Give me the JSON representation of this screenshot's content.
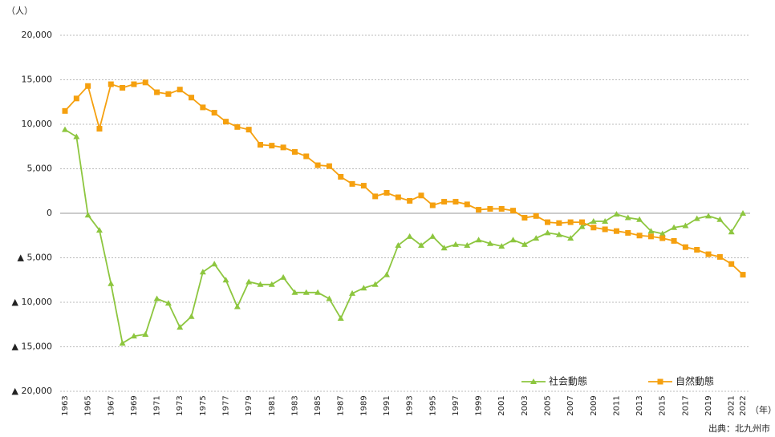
{
  "chart_data": {
    "type": "line",
    "y_unit_label": "（人）",
    "x_unit_label": "（年）",
    "source": "出典：北九州市",
    "categories": [
      "1963",
      null,
      "1965",
      null,
      "1967",
      null,
      "1969",
      null,
      "1971",
      null,
      "1973",
      null,
      "1975",
      null,
      "1977",
      null,
      "1979",
      null,
      "1981",
      null,
      "1983",
      null,
      "1985",
      null,
      "1987",
      null,
      "1989",
      null,
      "1991",
      null,
      "1993",
      null,
      "1995",
      null,
      "1997",
      null,
      "1999",
      null,
      "2001",
      null,
      "2003",
      null,
      "2005",
      null,
      "2007",
      null,
      "2009",
      null,
      "2011",
      null,
      "2013",
      null,
      "2015",
      null,
      "2017",
      null,
      "2019",
      null,
      "2021",
      "2022"
    ],
    "series": [
      {
        "name": "社会動態",
        "color": "#8dc63f",
        "marker": "triangle",
        "values": [
          9400,
          8600,
          -200,
          -1900,
          -7900,
          -14600,
          -13800,
          -13600,
          -9600,
          -10100,
          -12800,
          -11600,
          -6600,
          -5700,
          -7500,
          -10500,
          -7700,
          -8000,
          -8000,
          -7200,
          -8900,
          -8900,
          -8900,
          -9600,
          -11800,
          -9000,
          -8400,
          -8000,
          -6900,
          -3600,
          -2600,
          -3600,
          -2600,
          -3900,
          -3500,
          -3600,
          -3000,
          -3400,
          -3700,
          -3000,
          -3500,
          -2800,
          -2200,
          -2400,
          -2800,
          -1500,
          -900,
          -900,
          -100,
          -500,
          -700,
          -2000,
          -2300,
          -1600,
          -1400,
          -600,
          -300,
          -700,
          -2100,
          0
        ]
      },
      {
        "name": "自然動態",
        "color": "#f5a00f",
        "marker": "square",
        "values": [
          11500,
          12900,
          14300,
          9500,
          14500,
          14100,
          14500,
          14700,
          13600,
          13400,
          13900,
          13000,
          11900,
          11300,
          10300,
          9700,
          9400,
          7700,
          7600,
          7400,
          6900,
          6400,
          5400,
          5300,
          4100,
          3300,
          3100,
          1900,
          2300,
          1800,
          1400,
          2000,
          900,
          1300,
          1300,
          1000,
          400,
          500,
          500,
          300,
          -500,
          -300,
          -1000,
          -1100,
          -1000,
          -1000,
          -1600,
          -1800,
          -2000,
          -2200,
          -2500,
          -2600,
          -2800,
          -3100,
          -3800,
          -4100,
          -4600,
          -4900,
          -5700,
          -6900
        ]
      }
    ],
    "ylim": [
      -20000,
      20000
    ],
    "yticks": [
      {
        "value": 20000,
        "label": "20,000"
      },
      {
        "value": 15000,
        "label": "15,000"
      },
      {
        "value": 10000,
        "label": "10,000"
      },
      {
        "value": 5000,
        "label": "5,000"
      },
      0,
      {
        "value": -5000,
        "label": "▲ 5,000"
      },
      {
        "value": -10000,
        "label": "▲ 10,000"
      },
      {
        "value": -15000,
        "label": "▲ 15,000"
      },
      {
        "value": -20000,
        "label": "▲ 20,000"
      }
    ],
    "grid": true,
    "legend": "lower right"
  }
}
